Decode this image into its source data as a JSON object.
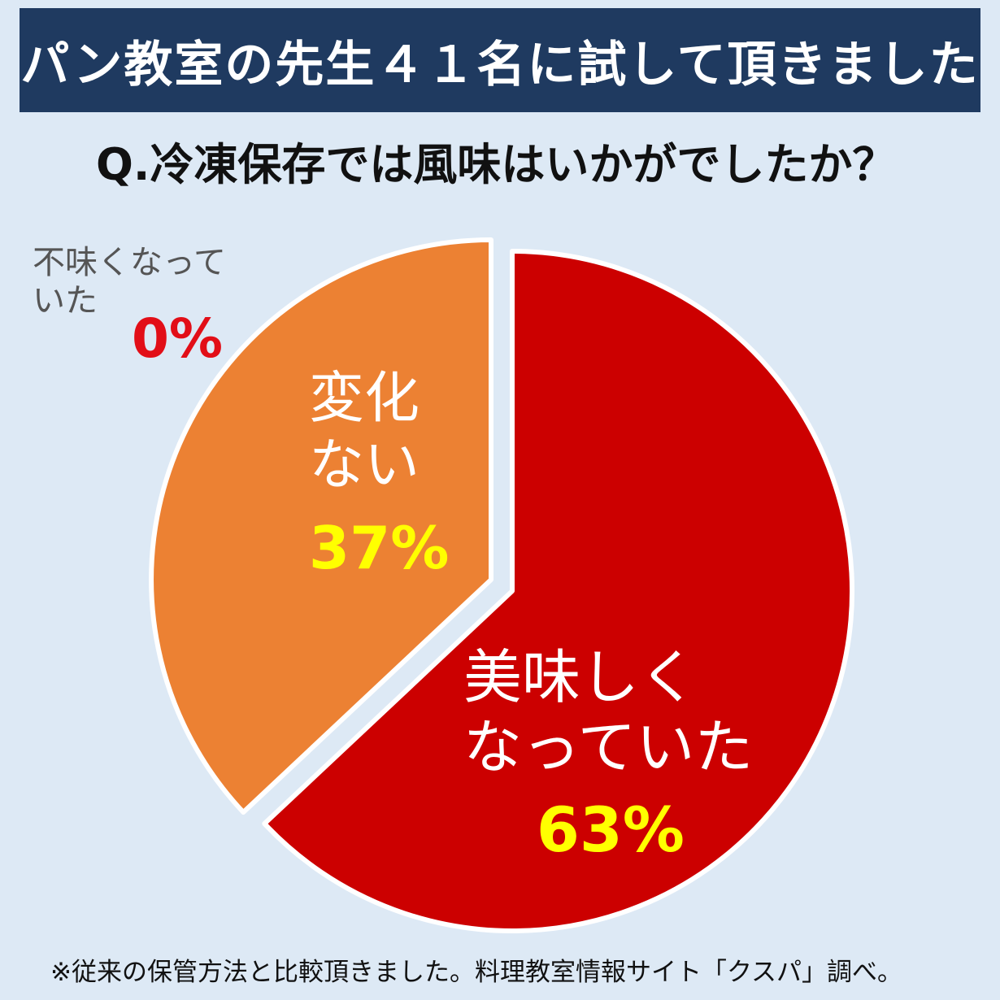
{
  "banner": {
    "title": "パン教室の先生４１名に試して頂きました"
  },
  "question": "Q.冷凍保存では風味はいかがでしたか？",
  "chart_data": {
    "type": "pie",
    "slices": [
      {
        "label_lines": [
          "美味しく",
          "なっていた"
        ],
        "value": 63,
        "value_label": "63%",
        "color": "#cc0000"
      },
      {
        "label_lines": [
          "変化",
          "ない"
        ],
        "value": 37,
        "value_label": "37%",
        "color": "#ec8133"
      },
      {
        "label_lines": [
          "不味くなって",
          "いた"
        ],
        "value": 0,
        "value_label": "0%",
        "color": "#e20e17"
      }
    ]
  },
  "footnote": "※従来の保管方法と比較頂きました。料理教室情報サイト「クスパ」調べ。"
}
